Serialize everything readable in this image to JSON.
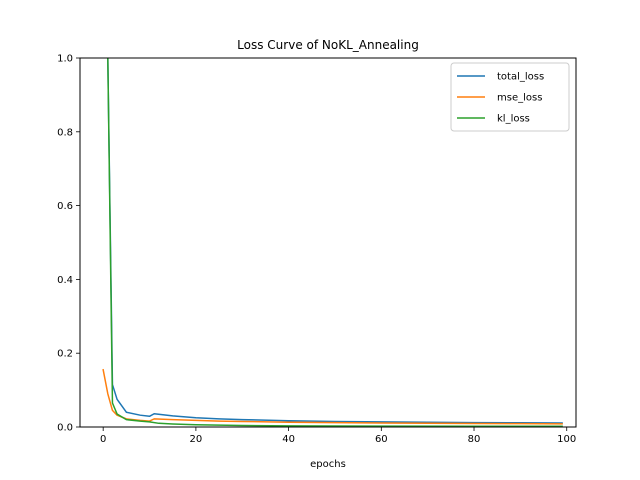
{
  "chart_data": {
    "type": "line",
    "title": "Loss Curve of NoKL_Annealing",
    "xlabel": "epochs",
    "ylabel": "",
    "xlim": [
      -5,
      102
    ],
    "ylim": [
      0.0,
      1.0
    ],
    "xticks": [
      0,
      20,
      40,
      60,
      80,
      100
    ],
    "yticks": [
      0.0,
      0.2,
      0.4,
      0.6,
      0.8,
      1.0
    ],
    "xtick_labels": [
      "0",
      "20",
      "40",
      "60",
      "80",
      "100"
    ],
    "ytick_labels": [
      "0.0",
      "0.2",
      "0.4",
      "0.6",
      "0.8",
      "1.0"
    ],
    "grid": false,
    "legend_position": "top-right",
    "series": [
      {
        "name": "total_loss",
        "color": "#1f77b4",
        "x": [
          1,
          2,
          3,
          5,
          8,
          10,
          11,
          15,
          20,
          25,
          30,
          40,
          50,
          60,
          70,
          80,
          90,
          99
        ],
        "y": [
          1.0,
          0.115,
          0.075,
          0.04,
          0.032,
          0.029,
          0.036,
          0.03,
          0.025,
          0.022,
          0.02,
          0.017,
          0.015,
          0.014,
          0.013,
          0.012,
          0.0115,
          0.011
        ]
      },
      {
        "name": "mse_loss",
        "color": "#ff7f0e",
        "x": [
          0,
          1,
          2,
          3,
          5,
          8,
          10,
          11,
          15,
          20,
          25,
          30,
          40,
          50,
          60,
          70,
          80,
          90,
          99
        ],
        "y": [
          0.155,
          0.09,
          0.045,
          0.032,
          0.022,
          0.018,
          0.016,
          0.022,
          0.02,
          0.018,
          0.016,
          0.015,
          0.013,
          0.012,
          0.011,
          0.01,
          0.0095,
          0.009,
          0.0085
        ]
      },
      {
        "name": "kl_loss",
        "color": "#2ca02c",
        "x": [
          1,
          2,
          3,
          5,
          8,
          10,
          12,
          15,
          20,
          30,
          40,
          60,
          80,
          99
        ],
        "y": [
          1.0,
          0.065,
          0.035,
          0.02,
          0.016,
          0.014,
          0.01,
          0.008,
          0.006,
          0.004,
          0.003,
          0.0025,
          0.002,
          0.002
        ]
      }
    ]
  }
}
